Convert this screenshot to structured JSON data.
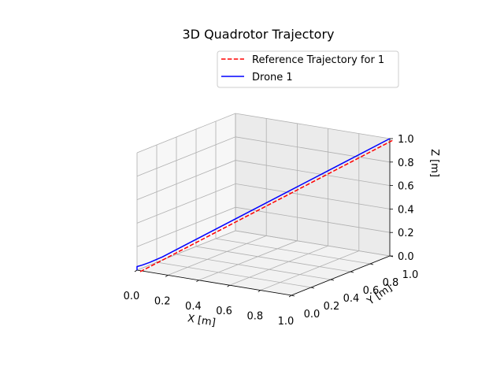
{
  "chart_data": {
    "type": "line",
    "projection": "3d",
    "title": "3D Quadrotor Trajectory",
    "xlabel": "X [m]",
    "ylabel": "Y [m]",
    "zlabel": "Z [m]",
    "xlim": [
      0.0,
      1.0
    ],
    "ylim": [
      0.0,
      1.0
    ],
    "zlim": [
      0.0,
      1.0
    ],
    "x_ticks": [
      "0.0",
      "0.2",
      "0.4",
      "0.6",
      "0.8",
      "1.0"
    ],
    "y_ticks": [
      "0.0",
      "0.2",
      "0.4",
      "0.6",
      "0.8",
      "1.0"
    ],
    "z_ticks": [
      "0.0",
      "0.2",
      "0.4",
      "0.6",
      "0.8",
      "1.0"
    ],
    "grid": true,
    "legend_position": "upper-right",
    "series": [
      {
        "name": "Reference Trajectory for 1",
        "color": "#ff0000",
        "linestyle": "dashed",
        "x": [
          0.0,
          1.0
        ],
        "y": [
          0.0,
          1.0
        ],
        "z": [
          0.0,
          1.0
        ]
      },
      {
        "name": "Drone 1",
        "color": "#0000ff",
        "linestyle": "solid",
        "x": [
          0.0,
          0.0,
          0.02,
          0.05,
          0.1,
          0.2,
          0.4,
          0.6,
          0.8,
          1.0
        ],
        "y": [
          0.0,
          0.0,
          0.02,
          0.05,
          0.1,
          0.2,
          0.4,
          0.6,
          0.8,
          1.0
        ],
        "z": [
          0.0,
          0.03,
          0.04,
          0.06,
          0.1,
          0.2,
          0.4,
          0.6,
          0.8,
          1.0
        ]
      }
    ]
  }
}
